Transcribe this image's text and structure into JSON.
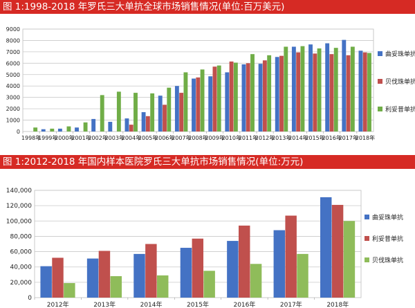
{
  "chart_data": [
    {
      "type": "bar",
      "title": "图 1:1998-2018 年罗氏三大单抗全球市场销售情况(单位:百万美元)",
      "categories": [
        "1998年",
        "1999年",
        "2000年",
        "2001年",
        "2002年",
        "2003年",
        "2004年",
        "2005年",
        "2006年",
        "2007年",
        "2008年",
        "2009年",
        "2010年",
        "2011年",
        "2012年",
        "2013年",
        "2014年",
        "2015年",
        "2016年",
        "2017年",
        "2018年"
      ],
      "series": [
        {
          "name": "曲妥珠单抗",
          "color": "#4472c4",
          "values": [
            0,
            200,
            250,
            350,
            1100,
            850,
            1150,
            1700,
            3150,
            4000,
            4650,
            4850,
            5200,
            5900,
            5950,
            6550,
            7450,
            7650,
            7750,
            8050,
            7100
          ]
        },
        {
          "name": "贝伐珠单抗",
          "color": "#c0504d",
          "values": [
            0,
            0,
            0,
            0,
            0,
            0,
            600,
            1350,
            2350,
            3400,
            4750,
            5700,
            6150,
            6000,
            6250,
            6650,
            6950,
            6850,
            6800,
            6700,
            6950
          ]
        },
        {
          "name": "利妥昔单抗",
          "color": "#70ad47",
          "values": [
            350,
            250,
            450,
            800,
            3200,
            3500,
            3400,
            3350,
            3850,
            5200,
            5450,
            5800,
            6050,
            6800,
            6700,
            7450,
            7500,
            7300,
            7350,
            7450,
            6900
          ]
        }
      ],
      "ylim": [
        0,
        9000
      ],
      "yticks": [
        0,
        1000,
        2000,
        3000,
        4000,
        5000,
        6000,
        7000,
        8000,
        9000
      ],
      "grid": true,
      "legend": "right"
    },
    {
      "type": "bar",
      "title": "图 1:2012-2018 年国内样本医院罗氏三大单抗市场销售情况(单位:万元)",
      "categories": [
        "2012年",
        "2013年",
        "2014年",
        "2015年",
        "2016年",
        "2017年",
        "2018年"
      ],
      "series": [
        {
          "name": "曲妥珠单抗",
          "color": "#4472c4",
          "values": [
            41000,
            51000,
            57000,
            65000,
            74000,
            88000,
            131000
          ]
        },
        {
          "name": "利妥昔单抗",
          "color": "#c0504d",
          "values": [
            52000,
            61000,
            70000,
            77000,
            94000,
            107000,
            121000
          ]
        },
        {
          "name": "贝伐珠单抗",
          "color": "#8fbc5a",
          "values": [
            19000,
            28000,
            29000,
            35000,
            44000,
            57000,
            100000
          ]
        }
      ],
      "ylim": [
        0,
        140000
      ],
      "yticks": [
        "0",
        "20,000",
        "40,000",
        "60,000",
        "80,000",
        "100,000",
        "120,000",
        "140,000"
      ],
      "grid": true,
      "legend": "right"
    }
  ]
}
